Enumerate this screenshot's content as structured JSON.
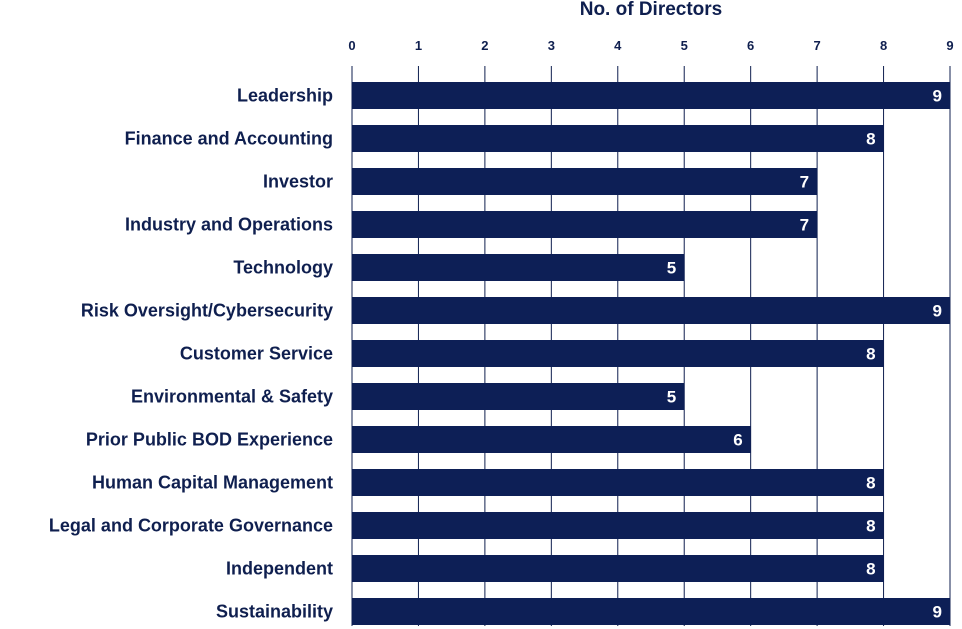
{
  "chart_data": {
    "type": "bar",
    "orientation": "horizontal",
    "title": "",
    "xlabel": "No. of Directors",
    "ylabel": "",
    "xlim": [
      0,
      9
    ],
    "x_ticks": [
      0,
      1,
      2,
      3,
      4,
      5,
      6,
      7,
      8,
      9
    ],
    "x_axis_position": "top",
    "grid": true,
    "legend": "none",
    "categories": [
      "Leadership",
      "Finance and Accounting",
      "Investor",
      "Industry and Operations",
      "Technology",
      "Risk Oversight/Cybersecurity",
      "Customer Service",
      "Environmental & Safety",
      "Prior Public BOD Experience",
      "Human Capital Management",
      "Legal and Corporate Governance",
      "Independent",
      "Sustainability"
    ],
    "values": [
      9,
      8,
      7,
      7,
      5,
      9,
      8,
      5,
      6,
      8,
      8,
      8,
      9
    ],
    "colors": {
      "bar": "#0d1f56",
      "text": "#0f1f4f",
      "grid": "#0f1f4f",
      "data_label": "#ffffff"
    }
  }
}
